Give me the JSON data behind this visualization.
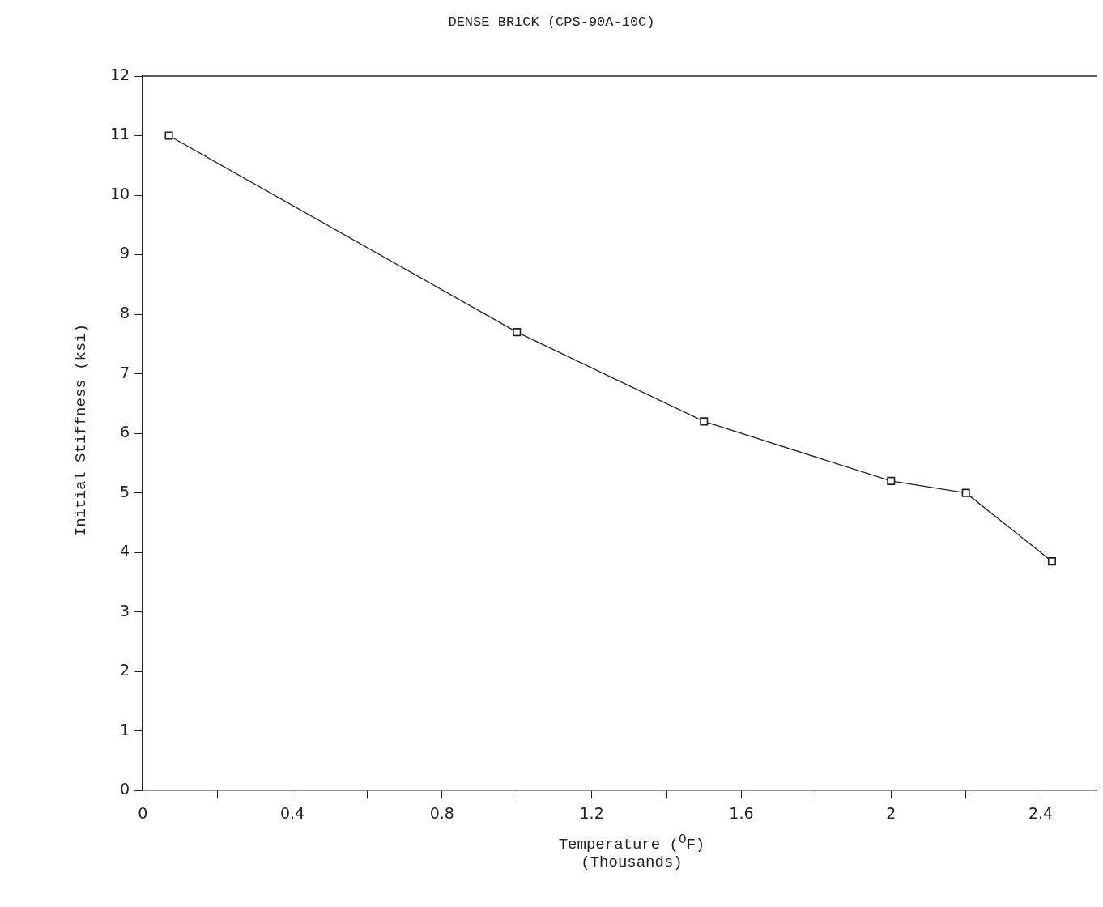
{
  "chart_data": {
    "type": "line",
    "title": "DENSE BR1CK (CPS-90A-10C)",
    "xlabel": "Temperature ($^{O}$F)\n(Thousands)",
    "ylabel": "Initial Stiffness (ksi)",
    "x": [
      0.07,
      1.0,
      1.5,
      2.0,
      2.2,
      2.43
    ],
    "series": [
      {
        "color": "#222222",
        "values": [
          11,
          7.7,
          6.2,
          5.2,
          5.0,
          3.85
        ]
      }
    ],
    "xlim": [
      0,
      2.55
    ],
    "xticks": [
      0,
      {
        "value": 0.2,
        "label": null
      },
      "0.4",
      {
        "value": 0.6,
        "label": null
      },
      "0.8",
      {
        "value": 1.0,
        "label": null
      },
      "1.2",
      {
        "value": 1.4,
        "label": null
      },
      "1.6",
      {
        "value": 1.8,
        "label": null
      },
      2,
      {
        "value": 2.2,
        "label": null
      },
      "2.4"
    ],
    "ylim": [
      0,
      12
    ],
    "yticks": [
      0,
      1,
      2,
      3,
      4,
      5,
      6,
      7,
      8,
      9,
      10,
      11,
      12
    ],
    "grid": false,
    "legend": false,
    "marker": "square",
    "line_style": "solid"
  }
}
